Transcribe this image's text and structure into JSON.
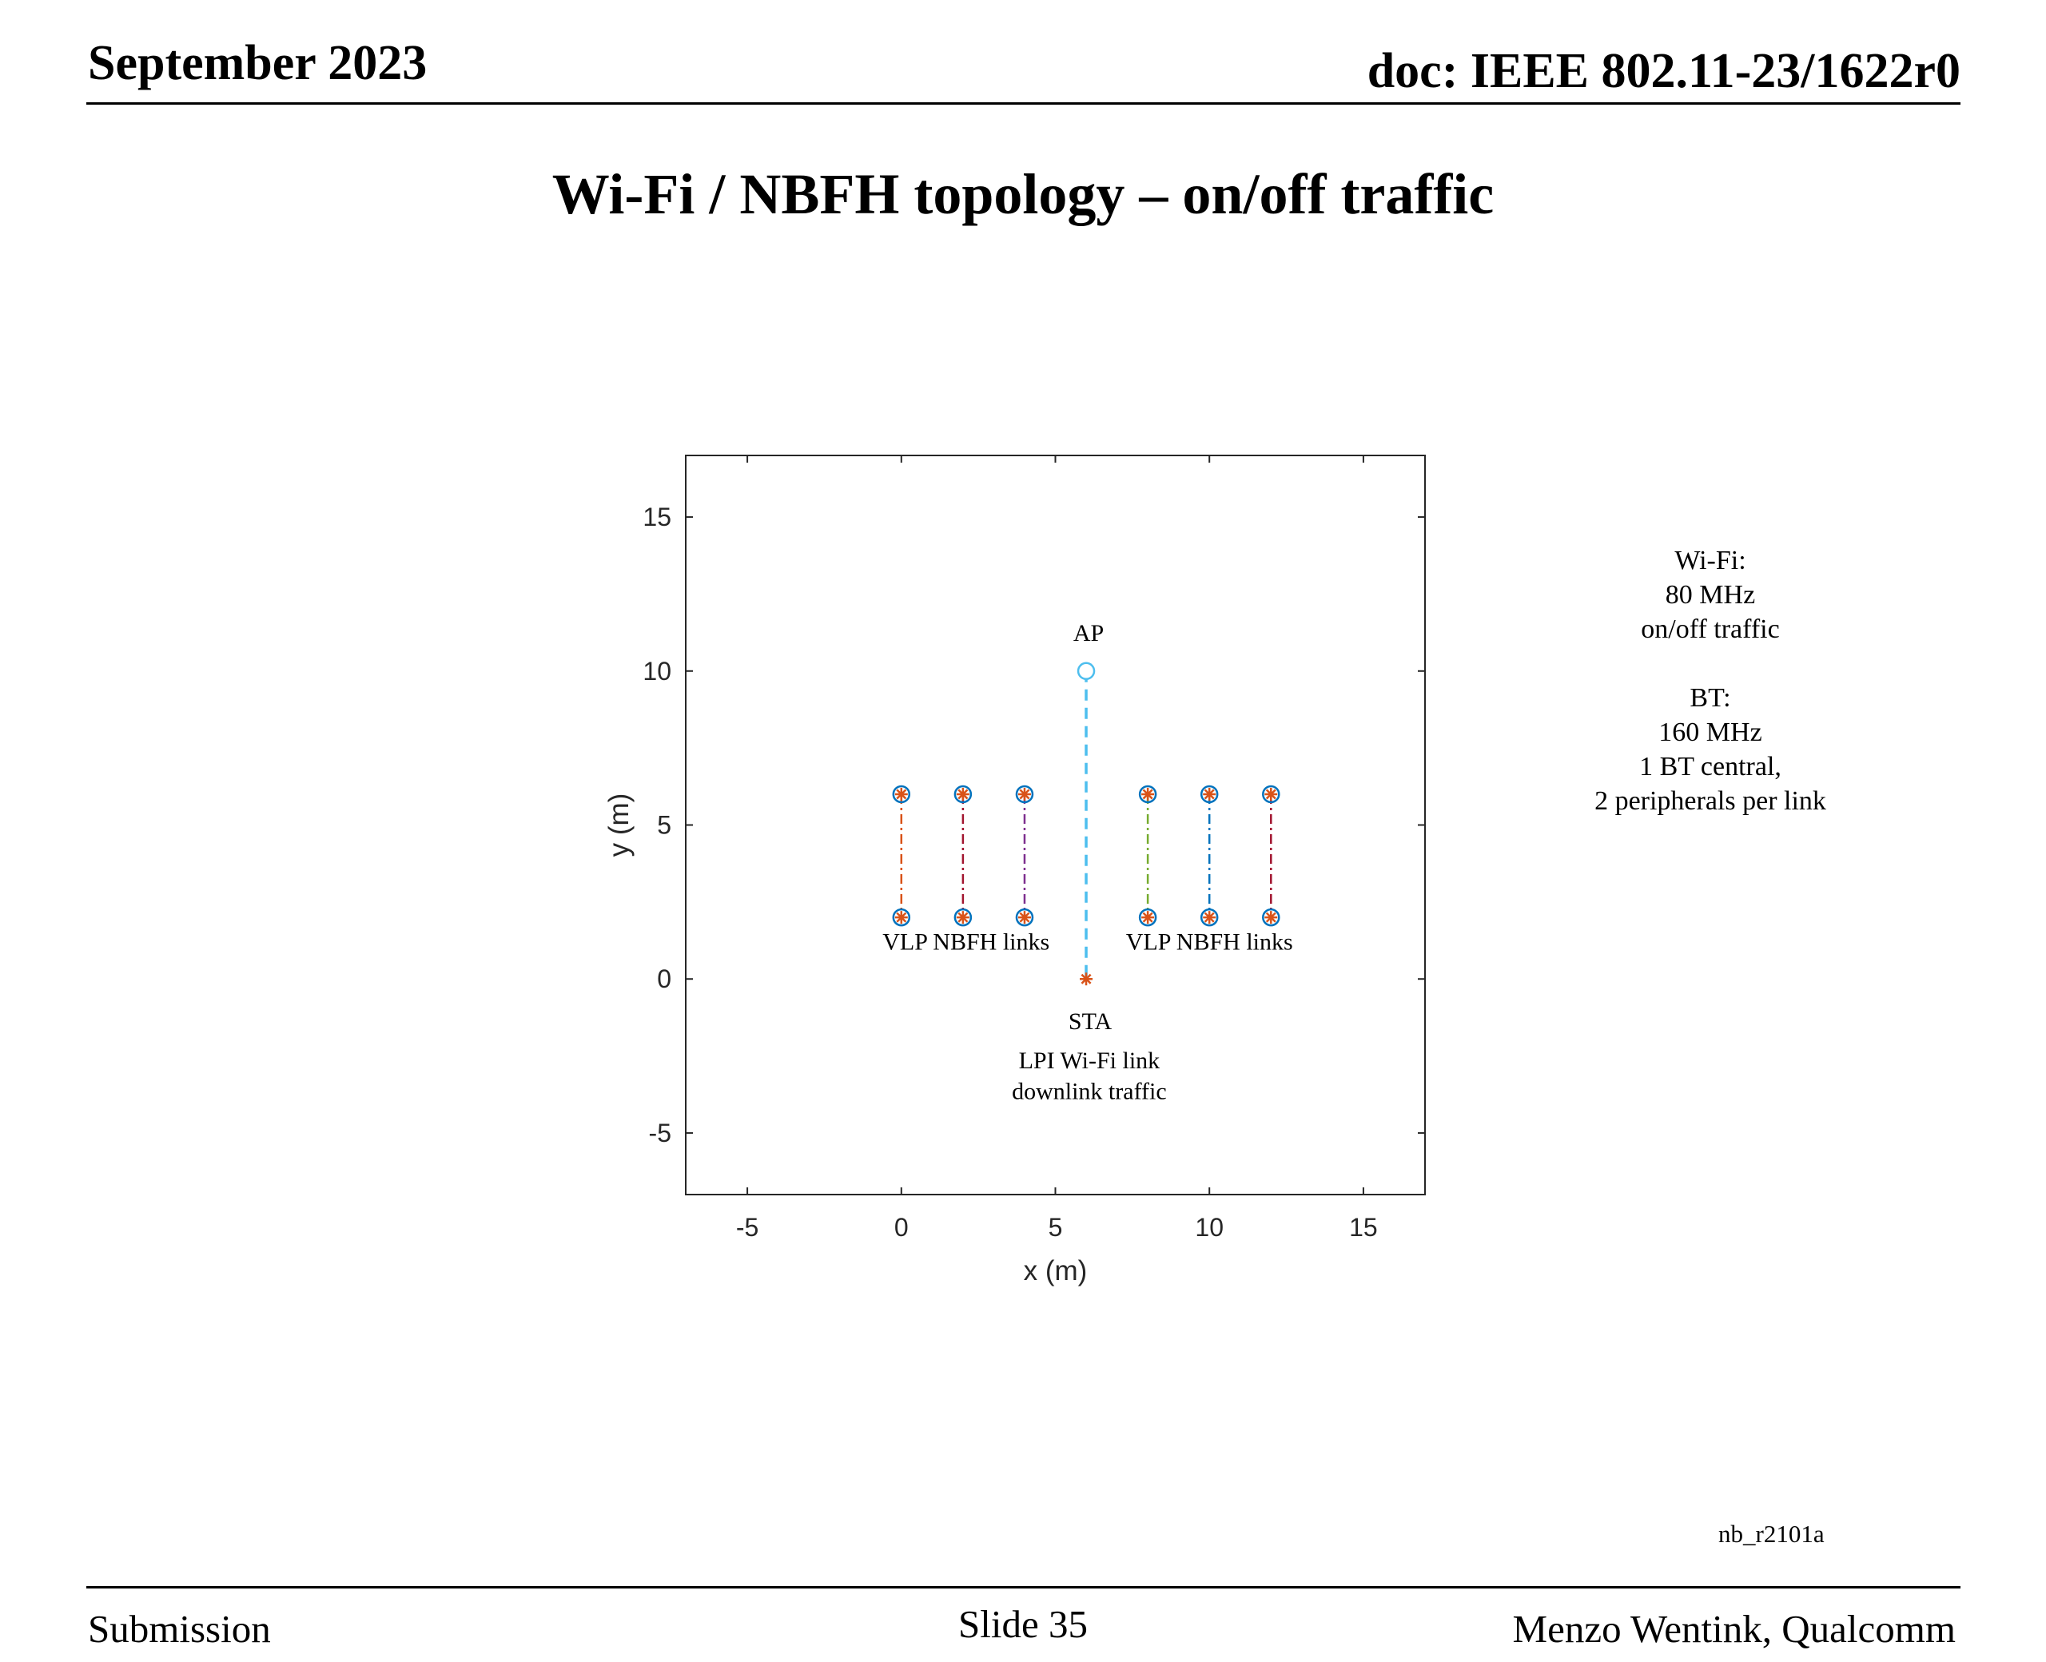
{
  "header": {
    "date": "September 2023",
    "doc": "doc: IEEE 802.11-23/1622r0"
  },
  "slide": {
    "title": "Wi-Fi / NBFH topology – on/off traffic"
  },
  "side_note": {
    "wifi_heading": "Wi-Fi:",
    "wifi_bandwidth": "80 MHz",
    "wifi_traffic": "on/off traffic",
    "bt_heading": "BT:",
    "bt_bandwidth": "160 MHz",
    "bt_central": "1 BT central,",
    "bt_peripherals": "2 peripherals per link"
  },
  "figure_id": "nb_r2101a",
  "footer": {
    "left": "Submission",
    "center": "Slide 35",
    "right": "Menzo Wentink, Qualcomm"
  },
  "chart_data": {
    "type": "scatter",
    "title": "",
    "xlabel": "x (m)",
    "ylabel": "y (m)",
    "xlim": [
      -7,
      17
    ],
    "ylim": [
      -7,
      17
    ],
    "xticks": [
      -5,
      0,
      5,
      10,
      15
    ],
    "yticks": [
      -5,
      0,
      5,
      10,
      15
    ],
    "grid": false,
    "colors": {
      "wifi": "#4DBEEE",
      "circle": "#0072BD",
      "star": "#D95319"
    },
    "wifi_link": {
      "ap": {
        "x": 6,
        "y": 10,
        "label": "AP"
      },
      "sta": {
        "x": 6,
        "y": 0,
        "label": "STA"
      },
      "style": "dashed"
    },
    "nbfh_links": [
      {
        "x": 0,
        "y_top": 6,
        "y_bottom": 2,
        "color": "#D95319"
      },
      {
        "x": 2,
        "y_top": 6,
        "y_bottom": 2,
        "color": "#A2142F"
      },
      {
        "x": 4,
        "y_top": 6,
        "y_bottom": 2,
        "color": "#7E2F8E"
      },
      {
        "x": 8,
        "y_top": 6,
        "y_bottom": 2,
        "color": "#77AC30"
      },
      {
        "x": 10,
        "y_top": 6,
        "y_bottom": 2,
        "color": "#0072BD"
      },
      {
        "x": 12,
        "y_top": 6,
        "y_bottom": 2,
        "color": "#A2142F"
      }
    ],
    "annotations": [
      {
        "text": "VLP NBFH links",
        "x": 2.1,
        "y": 0.95
      },
      {
        "text": "VLP NBFH links",
        "x": 10.0,
        "y": 0.95
      },
      {
        "text": "LPI Wi-Fi link",
        "x": 6.1,
        "y": -2.9
      },
      {
        "text": "downlink traffic",
        "x": 6.1,
        "y": -3.9
      }
    ]
  }
}
